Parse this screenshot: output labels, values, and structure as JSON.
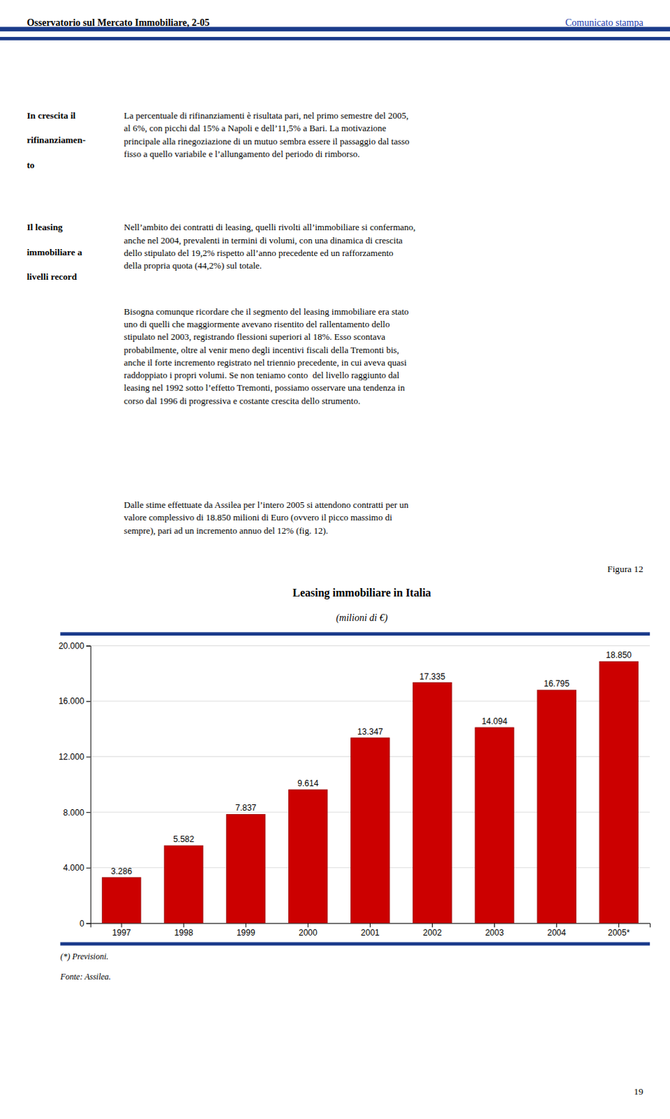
{
  "page": {
    "header_left": "Osservatorio sul Mercato Immobiliare, 2-05",
    "header_right": "Comunicato stampa",
    "sections": [
      {
        "sidebar": [
          "In crescita il",
          "rifinanziamen-",
          "to"
        ],
        "paragraphs": [
          [
            "La percentuale di rifinanziamenti è risultata pari, nel primo semestre del 2005,",
            "al 6%, con picchi dal 15% a Napoli e dell’11,5% a Bari. La motivazione",
            "principale alla rinegoziazione di un mutuo sembra essere il passaggio dal tasso",
            "fisso a quello variabile e l’allungamento del periodo di rimborso."
          ]
        ]
      },
      {
        "sidebar": [
          "Il leasing",
          "immobiliare a",
          "livelli record"
        ],
        "paragraphs": [
          [
            "Nell’ambito dei contratti di leasing, quelli rivolti all’immobiliare si confermano,",
            "anche nel 2004, prevalenti in termini di volumi, con una dinamica di crescita",
            "dello stipulato del 19,2% rispetto all’anno precedente ed un rafforzamento",
            "della propria quota (44,2%) sul totale."
          ],
          [
            "Bisogna comunque ricordare che il segmento del leasing immobiliare era stato",
            "uno di quelli che maggiormente avevano risentito del rallentamento dello",
            "stipulato nel 2003, registrando flessioni superiori al 18%. Esso scontava",
            "probabilmente, oltre al venir meno degli incentivi fiscali della Tremonti bis,",
            "anche il forte incremento registrato nel triennio precedente, in cui aveva quasi",
            "raddoppiato i propri volumi. Se non teniamo conto  del livello raggiunto dal",
            "leasing nel 1992 sotto l’effetto Tremonti, possiamo osservare una tendenza in",
            "corso dal 1996 di progressiva e costante crescita dello strumento."
          ],
          [
            "Dalle stime effettuate da Assilea per l’intero 2005 si attendono contratti per un",
            "valore complessivo di 18.850 milioni di Euro (ovvero il picco massimo di",
            "sempre), pari ad un incremento annuo del 12% (fig. 12)."
          ]
        ]
      }
    ],
    "page_number": "19"
  },
  "chart_data": {
    "type": "bar",
    "figure_label": "Figura 12",
    "title": "Leasing immobiliare in Italia",
    "subtitle": "(milioni di €)",
    "categories": [
      "1997",
      "1998",
      "1999",
      "2000",
      "2001",
      "2002",
      "2003",
      "2004",
      "2005*"
    ],
    "values": [
      3286,
      5582,
      7837,
      9614,
      13347,
      17335,
      14094,
      16795,
      18850
    ],
    "value_labels": [
      "3.286",
      "5.582",
      "7.837",
      "9.614",
      "13.347",
      "17.335",
      "14.094",
      "16.795",
      "18.850"
    ],
    "data_labels": true,
    "color": "#CC0000",
    "ylim": [
      0,
      20000
    ],
    "yticks": [
      0,
      {
        "value": 4000,
        "label": "4.000"
      },
      {
        "value": 8000,
        "label": "8.000"
      },
      {
        "value": 12000,
        "label": "12.000"
      },
      {
        "value": 16000,
        "label": "16.000"
      },
      {
        "value": 20000,
        "label": "20.000"
      }
    ],
    "grid": true,
    "footnote": "(*) Previsioni.",
    "source": "Fonte: Assilea."
  }
}
